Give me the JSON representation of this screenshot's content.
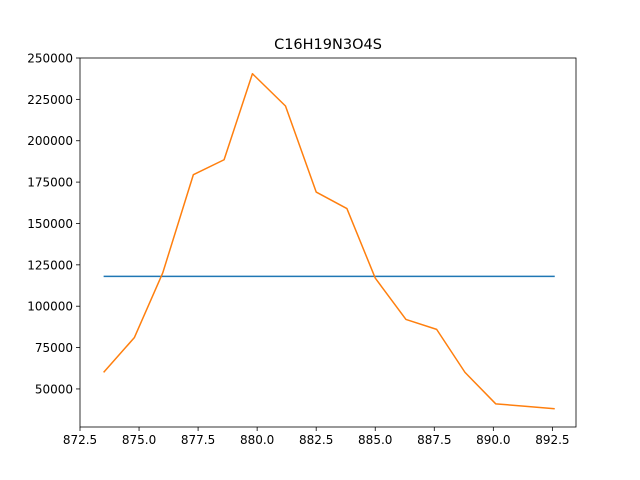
{
  "chart_data": {
    "type": "line",
    "title": "C16H19N3O4S",
    "xlabel": "",
    "ylabel": "",
    "xlim": [
      872.5,
      893.5
    ],
    "ylim": [
      27000,
      250000
    ],
    "xticks": [
      872.5,
      875.0,
      877.5,
      880.0,
      882.5,
      885.0,
      887.5,
      890.0,
      892.5
    ],
    "xtick_labels": [
      "872.5",
      "875.0",
      "877.5",
      "880.0",
      "882.5",
      "885.0",
      "887.5",
      "890.0",
      "892.5"
    ],
    "yticks": [
      50000,
      75000,
      100000,
      125000,
      150000,
      175000,
      200000,
      225000,
      250000
    ],
    "ytick_labels": [
      "50000",
      "75000",
      "100000",
      "125000",
      "150000",
      "175000",
      "200000",
      "225000",
      "250000"
    ],
    "grid": false,
    "series": [
      {
        "color": "#1f77b4",
        "x": [
          873.5,
          892.6
        ],
        "y": [
          118000,
          118000
        ]
      },
      {
        "color": "#ff7f0e",
        "x": [
          873.5,
          874.8,
          876.0,
          877.3,
          878.6,
          879.8,
          881.2,
          882.5,
          883.8,
          885.0,
          886.3,
          887.6,
          888.8,
          890.1,
          891.4,
          892.6
        ],
        "y": [
          60000,
          81000,
          120000,
          179500,
          188500,
          240500,
          221000,
          169000,
          159000,
          117000,
          92000,
          86000,
          60000,
          41000,
          39500,
          38000
        ]
      }
    ]
  }
}
